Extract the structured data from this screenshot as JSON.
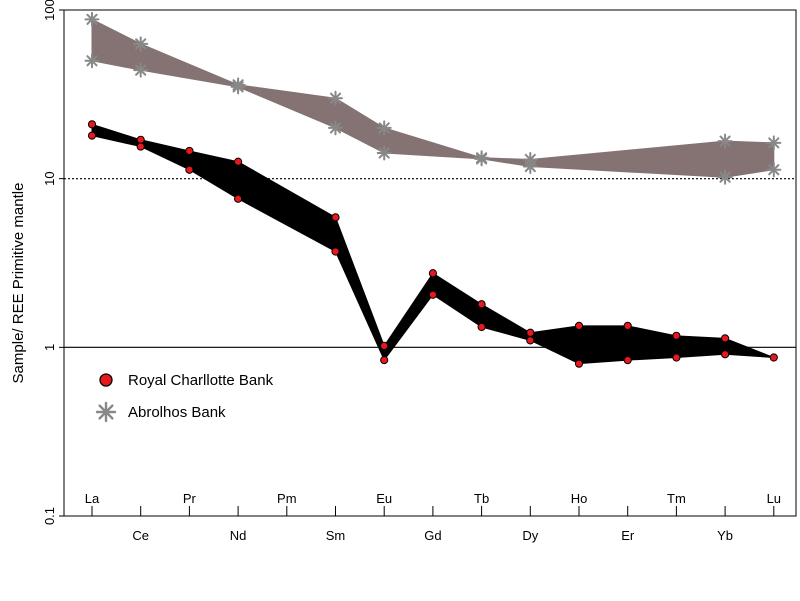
{
  "chart_data": {
    "type": "area",
    "ylabel": "Sample/ REE Primitive mantle",
    "yscale": "log",
    "ylim": [
      0.1,
      100
    ],
    "yticks": [
      {
        "value": 0.1,
        "label": "0.1"
      },
      {
        "value": 1,
        "label": "1"
      },
      {
        "value": 10,
        "label": "10"
      },
      {
        "value": 100,
        "label": "100"
      }
    ],
    "reference_lines": [
      {
        "value": 10,
        "style": "dotted"
      },
      {
        "value": 1,
        "style": "solid"
      }
    ],
    "categories": [
      "La",
      "Ce",
      "Pr",
      "Nd",
      "Pm",
      "Sm",
      "Eu",
      "Gd",
      "Tb",
      "Dy",
      "Ho",
      "Er",
      "Tm",
      "Yb",
      "Lu"
    ],
    "legend_position": "lower-left",
    "series": [
      {
        "name": "Abrolhos Bank",
        "marker": "asterisk",
        "color": "#888888",
        "fill": "#857373",
        "points": [
          {
            "el": "La",
            "upper": 88,
            "lower": 50
          },
          {
            "el": "Ce",
            "upper": 63,
            "lower": 44
          },
          {
            "el": "Nd",
            "upper": 36,
            "lower": 35
          },
          {
            "el": "Sm",
            "upper": 30,
            "lower": 20
          },
          {
            "el": "Eu",
            "upper": 20,
            "lower": 14.2
          },
          {
            "el": "Tb",
            "upper": 13.3,
            "lower": 13.1
          },
          {
            "el": "Dy",
            "upper": 13.0,
            "lower": 11.8
          },
          {
            "el": "Yb",
            "upper": 16.7,
            "lower": 10.2
          },
          {
            "el": "Lu",
            "upper": 16.3,
            "lower": 11.3
          }
        ]
      },
      {
        "name": "Royal Charllotte Bank",
        "marker": "circle",
        "color": "#e8181e",
        "fill": "#000000",
        "points": [
          {
            "el": "La",
            "upper": 21,
            "lower": 18
          },
          {
            "el": "Ce",
            "upper": 17,
            "lower": 15.5
          },
          {
            "el": "Pr",
            "upper": 14.6,
            "lower": 11.3
          },
          {
            "el": "Nd",
            "upper": 12.6,
            "lower": 7.6
          },
          {
            "el": "Sm",
            "upper": 5.9,
            "lower": 3.7
          },
          {
            "el": "Eu",
            "upper": 1.02,
            "lower": 0.84
          },
          {
            "el": "Gd",
            "upper": 2.75,
            "lower": 2.05
          },
          {
            "el": "Tb",
            "upper": 1.8,
            "lower": 1.32
          },
          {
            "el": "Dy",
            "upper": 1.22,
            "lower": 1.1
          },
          {
            "el": "Ho",
            "upper": 1.34,
            "lower": 0.8
          },
          {
            "el": "Er",
            "upper": 1.34,
            "lower": 0.84
          },
          {
            "el": "Tm",
            "upper": 1.17,
            "lower": 0.87
          },
          {
            "el": "Yb",
            "upper": 1.13,
            "lower": 0.91
          },
          {
            "el": "Lu",
            "upper": 0.87,
            "lower": 0.87
          }
        ]
      }
    ]
  }
}
